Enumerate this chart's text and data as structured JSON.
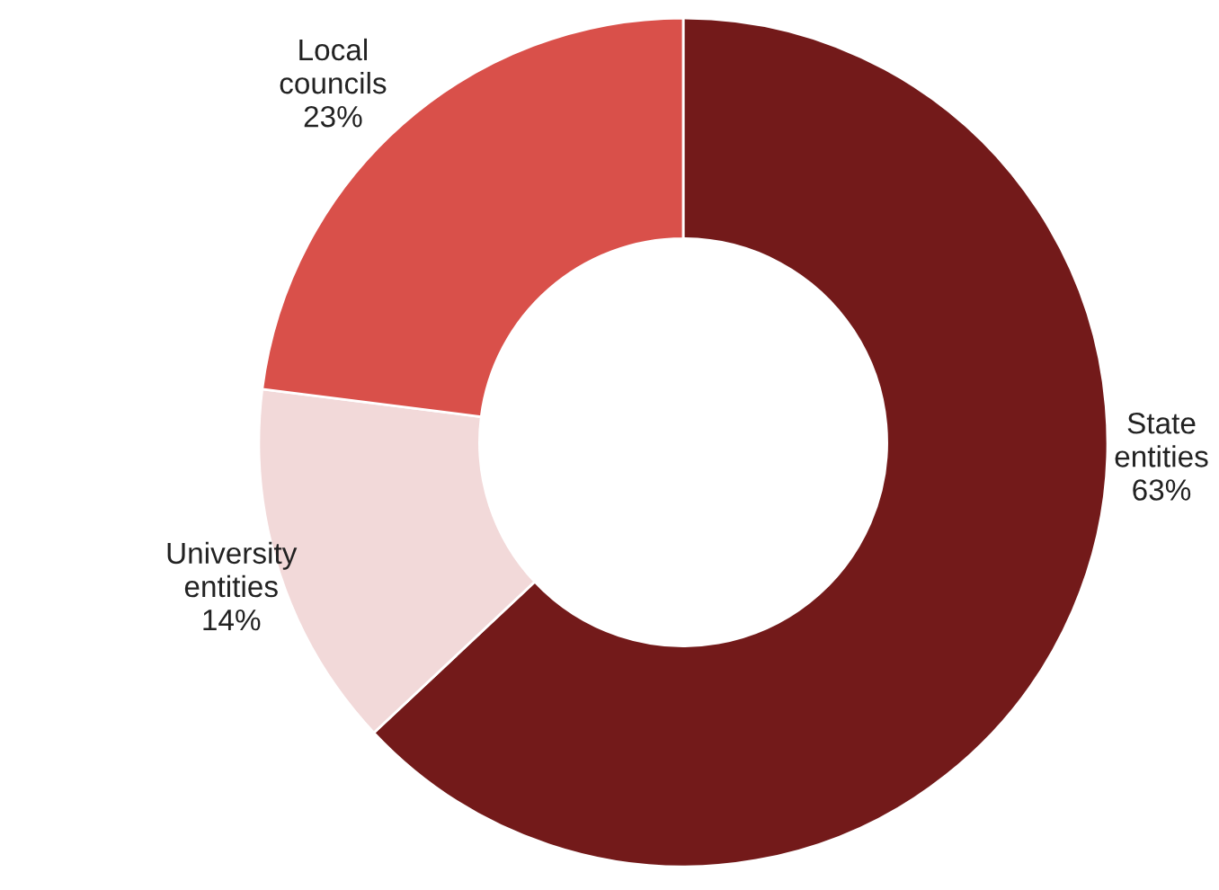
{
  "chart_data": {
    "type": "donut",
    "categories": [
      "State entities",
      "University entities",
      "Local councils"
    ],
    "values": [
      63,
      14,
      23
    ],
    "colors": [
      "#731a1a",
      "#f2d9d9",
      "#d9504a"
    ],
    "value_labels": [
      "63%",
      "14%",
      "23%"
    ]
  }
}
